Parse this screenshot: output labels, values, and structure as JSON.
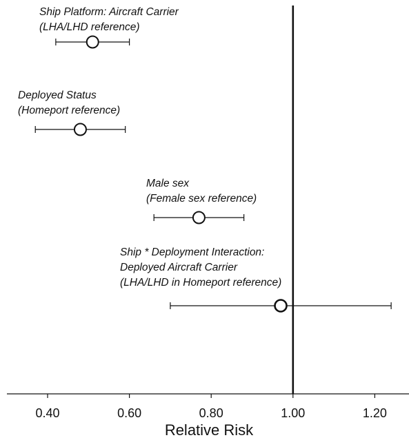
{
  "chart_data": {
    "type": "forest",
    "xlabel": "Relative Risk",
    "xlim": [
      0.3,
      1.28
    ],
    "xticks": [
      "0.40",
      "0.60",
      "0.80",
      "1.00",
      "1.20"
    ],
    "reference_line": 1.0,
    "grid": false,
    "points": [
      {
        "label_lines": [
          "Ship Platform: Aircraft Carrier",
          "(LHA/LHD reference)"
        ],
        "estimate": 0.51,
        "lower": 0.42,
        "upper": 0.6
      },
      {
        "label_lines": [
          "Deployed Status",
          "(Homeport reference)"
        ],
        "estimate": 0.48,
        "lower": 0.37,
        "upper": 0.59
      },
      {
        "label_lines": [
          "Male sex",
          "(Female sex reference)"
        ],
        "estimate": 0.77,
        "lower": 0.66,
        "upper": 0.88
      },
      {
        "label_lines": [
          "Ship * Deployment Interaction:",
          "Deployed Aircraft Carrier",
          "(LHA/LHD in Homeport reference)"
        ],
        "estimate": 0.97,
        "lower": 0.7,
        "upper": 1.24
      }
    ]
  }
}
